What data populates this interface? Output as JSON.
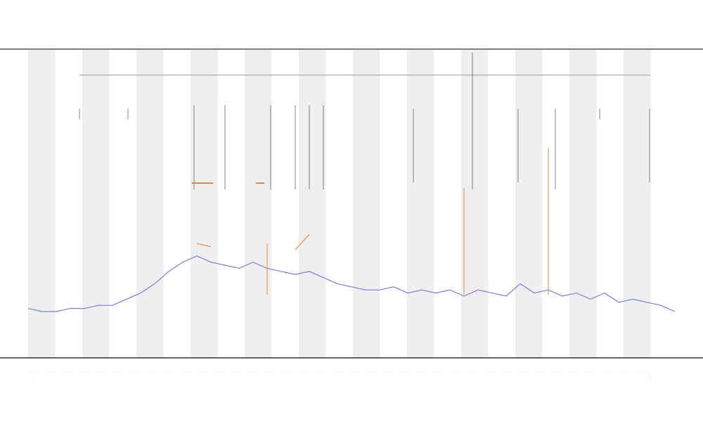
{
  "chart_data": {
    "type": "line",
    "x": [
      0,
      1,
      2,
      3,
      4,
      5,
      6,
      7,
      8,
      9,
      10,
      11,
      12,
      13,
      14,
      15,
      16,
      17,
      18,
      19,
      20,
      21,
      22,
      23,
      24,
      25,
      26,
      27,
      28,
      29,
      30,
      31,
      32,
      33,
      34,
      35,
      36,
      37,
      38,
      39,
      40,
      41,
      42,
      43,
      44,
      45,
      46
    ],
    "xlim": [
      0,
      46
    ],
    "ylim": [
      0,
      1
    ],
    "series": [
      {
        "color": "#7b7be8",
        "values": [
          0.16,
          0.15,
          0.15,
          0.16,
          0.16,
          0.17,
          0.17,
          0.19,
          0.21,
          0.24,
          0.28,
          0.31,
          0.33,
          0.31,
          0.3,
          0.29,
          0.31,
          0.29,
          0.28,
          0.27,
          0.28,
          0.26,
          0.24,
          0.23,
          0.22,
          0.22,
          0.23,
          0.21,
          0.22,
          0.21,
          0.22,
          0.2,
          0.22,
          0.21,
          0.2,
          0.24,
          0.21,
          0.22,
          0.2,
          0.21,
          0.19,
          0.21,
          0.18,
          0.19,
          0.18,
          0.17,
          0.15
        ]
      },
      {
        "color": "#e8893a",
        "values": [
          null,
          null,
          null,
          null,
          null,
          null,
          null,
          null,
          null,
          null,
          null,
          null,
          0.37,
          0.36,
          null,
          null,
          null,
          0.37,
          null,
          0.35,
          0.4,
          null,
          null,
          null,
          null,
          null,
          null,
          null,
          null,
          null,
          null,
          0.55,
          null,
          null,
          null,
          null,
          null,
          0.68,
          null,
          null,
          null,
          null,
          null,
          null,
          null,
          null,
          null
        ]
      }
    ]
  }
}
